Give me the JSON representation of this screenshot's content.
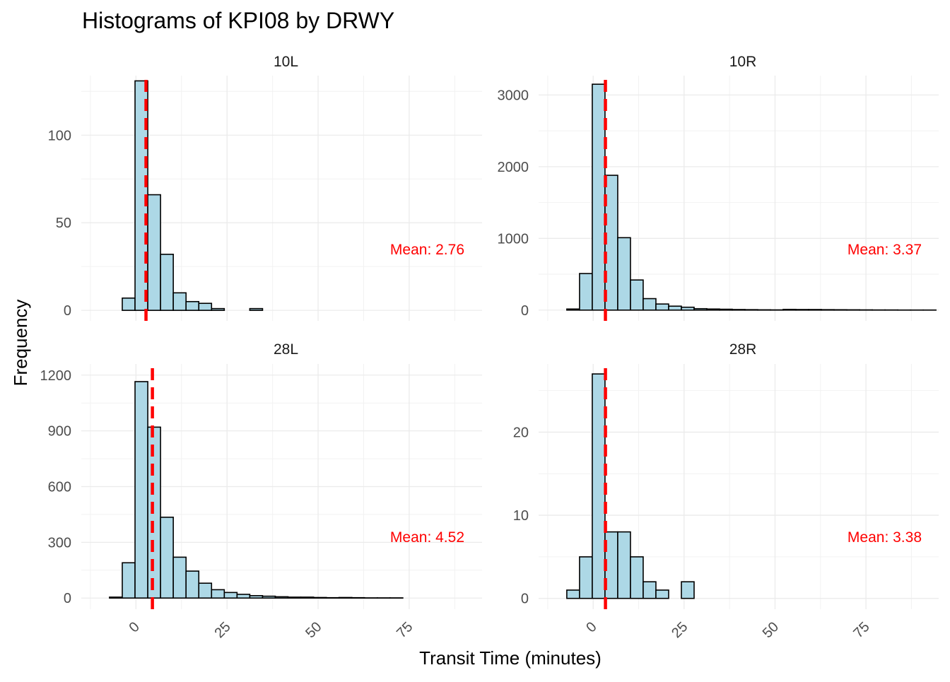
{
  "chart_data": {
    "type": "bar",
    "title": "Histograms of KPI08 by DRWY",
    "xlabel": "Transit Time (minutes)",
    "ylabel": "Frequency",
    "x_ticks": [
      "0",
      "25",
      "50",
      "75"
    ],
    "x_tick_values": [
      0,
      25,
      50,
      75
    ],
    "xlim": [
      -15,
      95
    ],
    "bin_width": 3.5,
    "first_bin_left": -10.75,
    "fill_color": "#ADD8E6",
    "outline_color": "#000000",
    "mean_line_color": "#ff0000",
    "mean_prefix": "Mean: ",
    "grid": true,
    "panels": [
      {
        "name": "10L",
        "mean": 2.76,
        "mean_text": "2.76",
        "ylim": [
          -6,
          134
        ],
        "y_ticks": [
          0,
          50,
          100
        ],
        "y_tick_labels": [
          "0",
          "50",
          "100"
        ],
        "values": [
          0,
          0,
          7,
          131,
          66,
          32,
          10,
          5,
          4,
          1,
          0,
          0,
          1,
          0,
          0,
          0,
          0,
          0,
          0,
          0,
          0,
          0,
          0,
          0,
          0,
          0,
          0,
          0,
          0,
          0
        ]
      },
      {
        "name": "10R",
        "mean": 3.37,
        "mean_text": "3.37",
        "ylim": [
          -150,
          3270
        ],
        "y_ticks": [
          0,
          1000,
          2000,
          3000
        ],
        "y_tick_labels": [
          "0",
          "1000",
          "2000",
          "3000"
        ],
        "values": [
          0,
          15,
          510,
          3150,
          1880,
          1010,
          420,
          160,
          85,
          55,
          40,
          20,
          15,
          12,
          8,
          6,
          4,
          3,
          10,
          8,
          8,
          6,
          5,
          4,
          3,
          2,
          2,
          1,
          1,
          1
        ]
      },
      {
        "name": "28L",
        "mean": 4.52,
        "mean_text": "4.52",
        "ylim": [
          -60,
          1260
        ],
        "y_ticks": [
          0,
          300,
          600,
          900,
          1200
        ],
        "y_tick_labels": [
          "0",
          "300",
          "600",
          "900",
          "1200"
        ],
        "values": [
          0,
          5,
          190,
          1165,
          920,
          435,
          220,
          145,
          80,
          45,
          30,
          20,
          13,
          10,
          7,
          5,
          5,
          3,
          2,
          3,
          2,
          1,
          1,
          1,
          0,
          0,
          0,
          0,
          0,
          0
        ]
      },
      {
        "name": "28R",
        "mean": 3.38,
        "mean_text": "3.38",
        "ylim": [
          -1.3,
          28.2
        ],
        "y_ticks": [
          0,
          10,
          20
        ],
        "y_tick_labels": [
          "0",
          "10",
          "20"
        ],
        "values": [
          0,
          1,
          5,
          27,
          8,
          8,
          5,
          2,
          1,
          0,
          2,
          0,
          0,
          0,
          0,
          0,
          0,
          0,
          0,
          0,
          0,
          0,
          0,
          0,
          0,
          0,
          0,
          0,
          0,
          0
        ]
      }
    ]
  }
}
